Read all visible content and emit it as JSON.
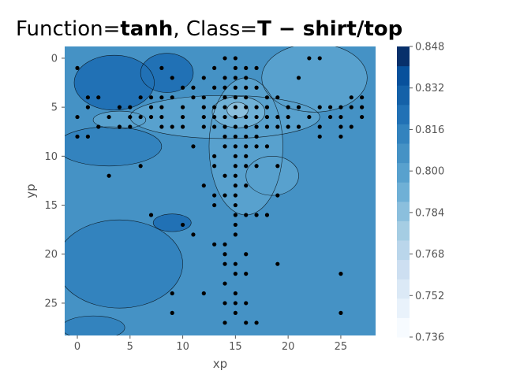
{
  "chart_data": {
    "type": "contour",
    "title_parts": {
      "prefix": "Function=",
      "function": "tanh",
      "sep": ", Class=",
      "class_label": "T − shirt/top"
    },
    "xlabel": "xp",
    "ylabel": "yp",
    "xlim": [
      -1.2,
      28.3
    ],
    "ylim": [
      28.3,
      -1.2
    ],
    "x_ticks": [
      0,
      5,
      10,
      15,
      20,
      25
    ],
    "y_ticks": [
      0,
      5,
      10,
      15,
      20,
      25
    ],
    "colorbar": {
      "min": 0.736,
      "max": 0.848,
      "ticks": [
        "0.736",
        "0.752",
        "0.768",
        "0.784",
        "0.800",
        "0.816",
        "0.832",
        "0.848"
      ],
      "levels": [
        0.736,
        0.744,
        0.752,
        0.76,
        0.768,
        0.776,
        0.784,
        0.792,
        0.8,
        0.808,
        0.816,
        0.824,
        0.832,
        0.84,
        0.848
      ],
      "colors": [
        "#f7fbff",
        "#e9f2fb",
        "#dbe9f6",
        "#cddff1",
        "#bad6eb",
        "#a5cde3",
        "#8bbfdd",
        "#6fb0d6",
        "#58a1ce",
        "#4592c5",
        "#3383be",
        "#2171b5",
        "#1461a8",
        "#08519c",
        "#08306b"
      ]
    },
    "background_value": 0.812,
    "regions": [
      {
        "name": "upper-left-dark",
        "cx": 3.5,
        "cy": 2.5,
        "rx": 3.8,
        "ry": 2.8,
        "value": 0.826
      },
      {
        "name": "upper-dark-2",
        "cx": 8.5,
        "cy": 1.5,
        "rx": 2.5,
        "ry": 2.0,
        "value": 0.824
      },
      {
        "name": "left-middle-dark",
        "cx": 3.0,
        "cy": 9.0,
        "rx": 5.0,
        "ry": 2.0,
        "value": 0.818
      },
      {
        "name": "lower-left-dark",
        "cx": 4.0,
        "cy": 21.0,
        "rx": 6.0,
        "ry": 4.5,
        "value": 0.818
      },
      {
        "name": "left-blob-dark",
        "cx": 9.0,
        "cy": 16.8,
        "rx": 1.8,
        "ry": 0.9,
        "value": 0.826
      },
      {
        "name": "bottom-left-dark",
        "cx": 1.5,
        "cy": 27.5,
        "rx": 3.0,
        "ry": 1.2,
        "value": 0.818
      },
      {
        "name": "upper-right-light",
        "cx": 22.5,
        "cy": 2.0,
        "rx": 5.0,
        "ry": 3.5,
        "value": 0.806
      },
      {
        "name": "cross-light-h",
        "cx": 14.0,
        "cy": 6.0,
        "rx": 9.0,
        "ry": 2.2,
        "value": 0.804
      },
      {
        "name": "cross-light-v",
        "cx": 16.0,
        "cy": 9.0,
        "rx": 3.5,
        "ry": 7.0,
        "value": 0.804
      },
      {
        "name": "right-light",
        "cx": 18.5,
        "cy": 12.0,
        "rx": 2.5,
        "ry": 2.0,
        "value": 0.802
      },
      {
        "name": "left-light-strip",
        "cx": 4.0,
        "cy": 6.3,
        "rx": 2.5,
        "ry": 0.9,
        "value": 0.806
      },
      {
        "name": "center-lighter",
        "cx": 15.3,
        "cy": 5.5,
        "rx": 2.5,
        "ry": 1.6,
        "value": 0.797
      },
      {
        "name": "center-lightest",
        "cx": 15.2,
        "cy": 5.3,
        "rx": 1.0,
        "ry": 0.8,
        "value": 0.789
      }
    ],
    "points": [
      [
        0,
        1
      ],
      [
        0,
        6
      ],
      [
        0,
        8
      ],
      [
        1,
        4
      ],
      [
        1,
        5
      ],
      [
        1,
        8
      ],
      [
        2,
        4
      ],
      [
        2,
        7
      ],
      [
        3,
        6
      ],
      [
        3,
        12
      ],
      [
        4,
        5
      ],
      [
        4,
        7
      ],
      [
        5,
        5
      ],
      [
        5,
        6
      ],
      [
        5,
        7
      ],
      [
        6,
        4
      ],
      [
        6,
        6
      ],
      [
        6,
        11
      ],
      [
        7,
        4
      ],
      [
        7,
        5
      ],
      [
        7,
        6
      ],
      [
        7,
        16
      ],
      [
        8,
        1
      ],
      [
        8,
        4
      ],
      [
        8,
        5
      ],
      [
        8,
        6
      ],
      [
        8,
        7
      ],
      [
        9,
        2
      ],
      [
        9,
        4
      ],
      [
        9,
        7
      ],
      [
        9,
        24
      ],
      [
        9,
        26
      ],
      [
        10,
        3
      ],
      [
        10,
        5
      ],
      [
        10,
        6
      ],
      [
        10,
        7
      ],
      [
        10,
        17
      ],
      [
        11,
        3
      ],
      [
        11,
        4
      ],
      [
        11,
        9
      ],
      [
        11,
        18
      ],
      [
        12,
        2
      ],
      [
        12,
        4
      ],
      [
        12,
        5
      ],
      [
        12,
        6
      ],
      [
        12,
        7
      ],
      [
        12,
        13
      ],
      [
        12,
        24
      ],
      [
        13,
        1
      ],
      [
        13,
        3
      ],
      [
        13,
        5
      ],
      [
        13,
        6
      ],
      [
        13,
        7
      ],
      [
        13,
        10
      ],
      [
        13,
        11
      ],
      [
        13,
        14
      ],
      [
        13,
        15
      ],
      [
        13,
        19
      ],
      [
        14,
        0
      ],
      [
        14,
        2
      ],
      [
        14,
        3
      ],
      [
        14,
        4
      ],
      [
        14,
        5
      ],
      [
        14,
        6
      ],
      [
        14,
        7
      ],
      [
        14,
        8
      ],
      [
        14,
        9
      ],
      [
        14,
        12
      ],
      [
        14,
        14
      ],
      [
        14,
        19
      ],
      [
        14,
        20
      ],
      [
        14,
        21
      ],
      [
        14,
        23
      ],
      [
        14,
        25
      ],
      [
        14,
        27
      ],
      [
        15,
        0
      ],
      [
        15,
        1
      ],
      [
        15,
        2
      ],
      [
        15,
        3
      ],
      [
        15,
        4
      ],
      [
        15,
        5
      ],
      [
        15,
        6
      ],
      [
        15,
        7
      ],
      [
        15,
        8
      ],
      [
        15,
        9
      ],
      [
        15,
        10
      ],
      [
        15,
        11
      ],
      [
        15,
        12
      ],
      [
        15,
        13
      ],
      [
        15,
        14
      ],
      [
        15,
        15
      ],
      [
        15,
        16
      ],
      [
        15,
        17
      ],
      [
        15,
        18
      ],
      [
        15,
        21
      ],
      [
        15,
        22
      ],
      [
        15,
        24
      ],
      [
        15,
        25
      ],
      [
        15,
        26
      ],
      [
        16,
        1
      ],
      [
        16,
        2
      ],
      [
        16,
        3
      ],
      [
        16,
        4
      ],
      [
        16,
        5
      ],
      [
        16,
        6
      ],
      [
        16,
        7
      ],
      [
        16,
        8
      ],
      [
        16,
        9
      ],
      [
        16,
        10
      ],
      [
        16,
        11
      ],
      [
        16,
        13
      ],
      [
        16,
        16
      ],
      [
        16,
        20
      ],
      [
        16,
        22
      ],
      [
        16,
        25
      ],
      [
        16,
        27
      ],
      [
        17,
        1
      ],
      [
        17,
        3
      ],
      [
        17,
        5
      ],
      [
        17,
        6
      ],
      [
        17,
        7
      ],
      [
        17,
        8
      ],
      [
        17,
        9
      ],
      [
        17,
        11
      ],
      [
        17,
        16
      ],
      [
        17,
        27
      ],
      [
        18,
        4
      ],
      [
        18,
        5
      ],
      [
        18,
        6
      ],
      [
        18,
        7
      ],
      [
        18,
        9
      ],
      [
        18,
        16
      ],
      [
        19,
        4
      ],
      [
        19,
        6
      ],
      [
        19,
        7
      ],
      [
        19,
        11
      ],
      [
        19,
        14
      ],
      [
        19,
        21
      ],
      [
        20,
        5
      ],
      [
        20,
        6
      ],
      [
        20,
        7
      ],
      [
        21,
        2
      ],
      [
        21,
        5
      ],
      [
        21,
        7
      ],
      [
        22,
        0
      ],
      [
        22,
        6
      ],
      [
        23,
        0
      ],
      [
        23,
        5
      ],
      [
        23,
        7
      ],
      [
        23,
        8
      ],
      [
        24,
        5
      ],
      [
        24,
        6
      ],
      [
        25,
        5
      ],
      [
        25,
        6
      ],
      [
        25,
        7
      ],
      [
        25,
        8
      ],
      [
        25,
        22
      ],
      [
        25,
        26
      ],
      [
        26,
        4
      ],
      [
        26,
        5
      ],
      [
        26,
        7
      ],
      [
        27,
        4
      ],
      [
        27,
        5
      ],
      [
        27,
        6
      ]
    ]
  }
}
